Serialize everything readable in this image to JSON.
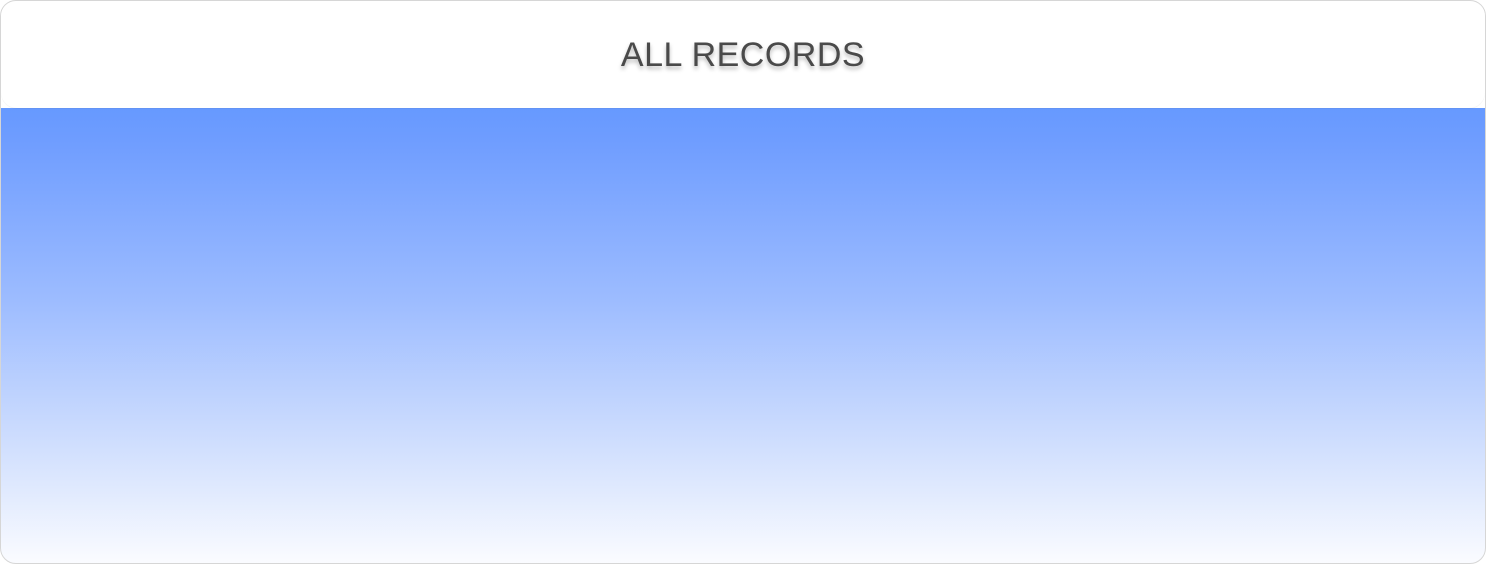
{
  "header": {
    "title": "ALL RECORDS"
  },
  "colors": {
    "header_background": "#ffffff",
    "title_text": "#4a4a4a",
    "gradient_top": "#6699ff",
    "gradient_bottom": "#fbfcff"
  }
}
